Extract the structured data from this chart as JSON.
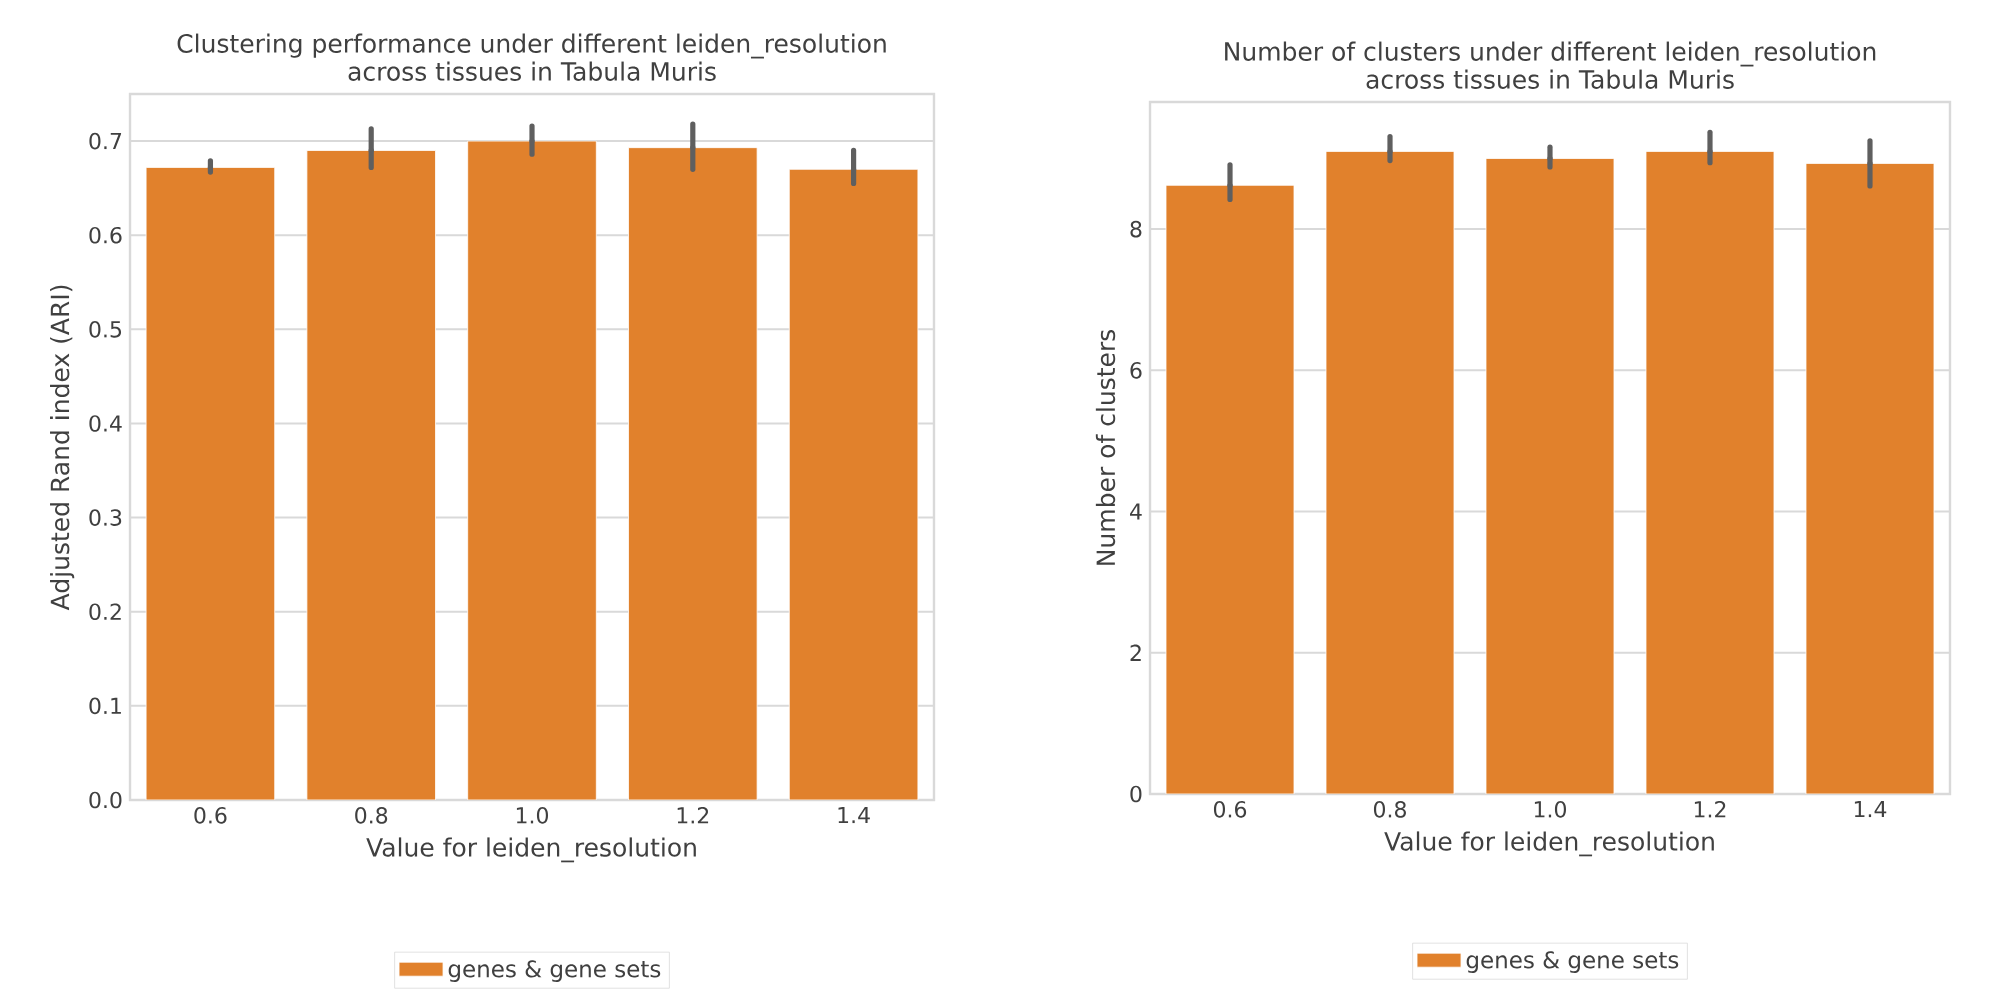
{
  "chart_data": [
    {
      "type": "bar",
      "title": "Clustering performance under different leiden_resolution\nacross tissues in Tabula Muris",
      "xlabel": "Value for leiden_resolution",
      "ylabel": "Adjusted Rand index (ARI)",
      "categories": [
        "0.6",
        "0.8",
        "1.0",
        "1.2",
        "1.4"
      ],
      "series": [
        {
          "name": "genes & gene sets",
          "color": "#e1812c",
          "values": [
            0.672,
            0.69,
            0.7,
            0.693,
            0.67
          ],
          "errors": [
            [
              0.667,
              0.679
            ],
            [
              0.672,
              0.713
            ],
            [
              0.686,
              0.716
            ],
            [
              0.67,
              0.718
            ],
            [
              0.655,
              0.69
            ]
          ]
        }
      ],
      "ylim": [
        0,
        0.75
      ],
      "yticks": [
        {
          "value": 0,
          "label": "0.0"
        },
        0.1,
        0.2,
        0.3,
        0.4,
        0.5,
        0.6,
        0.7
      ],
      "grid": "y",
      "legend": "bottom"
    },
    {
      "type": "bar",
      "title": "Number of clusters under different leiden_resolution\nacross tissues in Tabula Muris",
      "xlabel": "Value for leiden_resolution",
      "ylabel": "Number of clusters",
      "categories": [
        "0.6",
        "0.8",
        "1.0",
        "1.2",
        "1.4"
      ],
      "series": [
        {
          "name": "genes & gene sets",
          "color": "#e1812c",
          "values": [
            8.62,
            9.1,
            9.0,
            9.1,
            8.93
          ],
          "errors": [
            [
              8.42,
              8.91
            ],
            [
              8.97,
              9.31
            ],
            [
              8.88,
              9.16
            ],
            [
              8.94,
              9.37
            ],
            [
              8.61,
              9.25
            ]
          ]
        }
      ],
      "ylim": [
        0,
        9.8
      ],
      "yticks": [
        0,
        2,
        4,
        6,
        8
      ],
      "grid": "y",
      "legend": "bottom"
    }
  ]
}
